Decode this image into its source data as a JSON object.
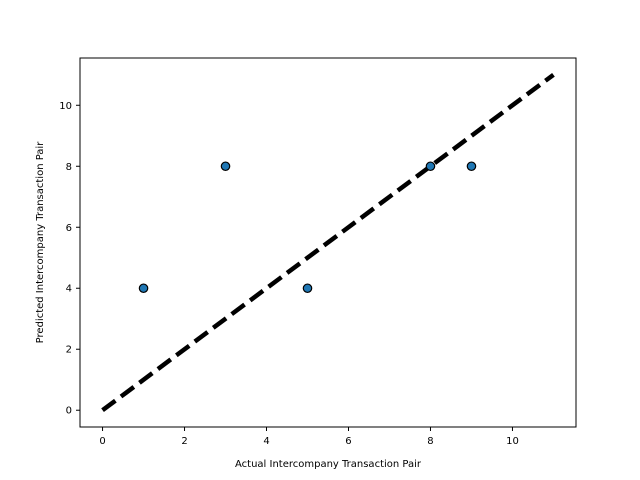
{
  "chart_data": {
    "type": "scatter",
    "title": "",
    "xlabel": "Actual Intercompany Transaction Pair",
    "ylabel": "Predicted Intercompany Transaction Pair",
    "xlim": [
      -0.55,
      11.55
    ],
    "ylim": [
      -0.55,
      11.55
    ],
    "xticks": [
      0,
      2,
      4,
      6,
      8,
      10
    ],
    "yticks": [
      0,
      2,
      4,
      6,
      8,
      10
    ],
    "grid": false,
    "points": [
      {
        "x": 1,
        "y": 4
      },
      {
        "x": 3,
        "y": 8
      },
      {
        "x": 5,
        "y": 4
      },
      {
        "x": 8,
        "y": 8
      },
      {
        "x": 9,
        "y": 8
      }
    ],
    "reference_line": {
      "x": [
        0,
        11
      ],
      "y": [
        0,
        11
      ],
      "style": "dashed"
    },
    "colors": {
      "marker_fill": "#1f77b4",
      "marker_edge": "#000000",
      "reference_line": "#000000"
    }
  }
}
